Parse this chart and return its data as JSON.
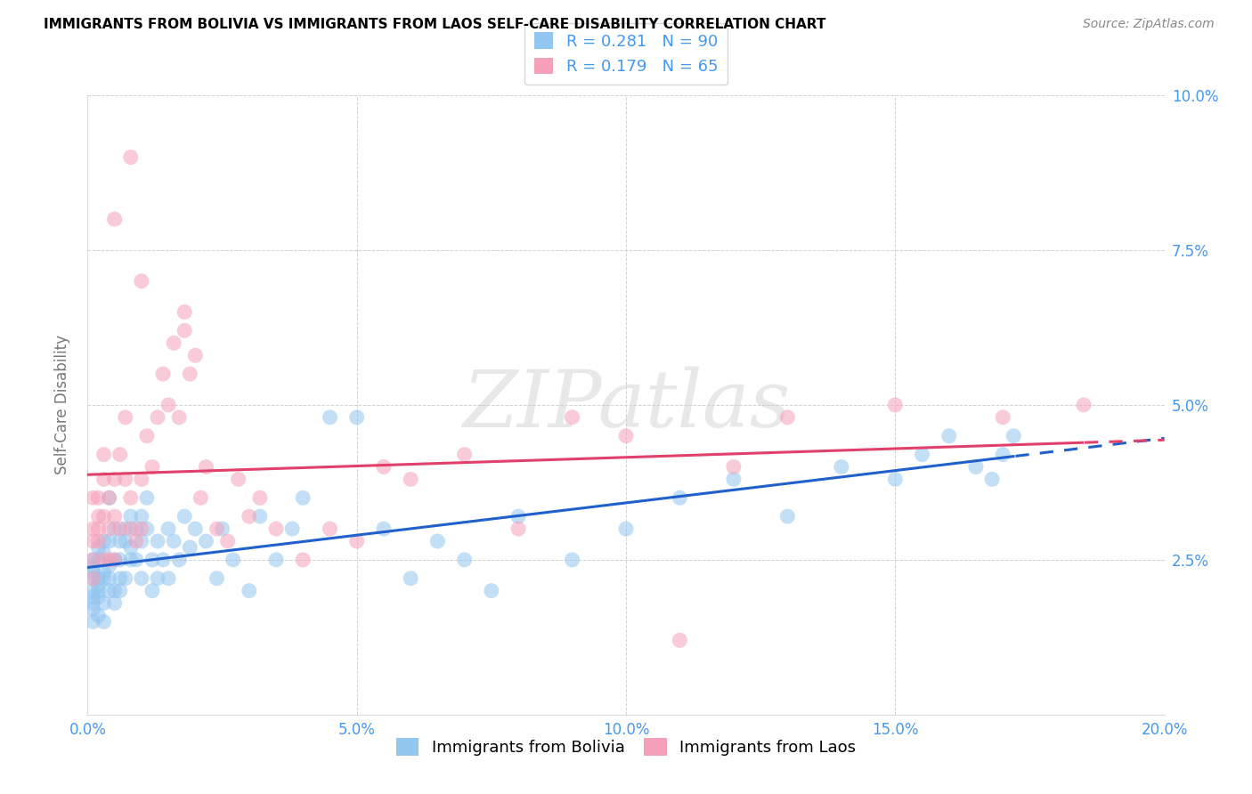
{
  "title": "IMMIGRANTS FROM BOLIVIA VS IMMIGRANTS FROM LAOS SELF-CARE DISABILITY CORRELATION CHART",
  "source": "Source: ZipAtlas.com",
  "ylabel": "Self-Care Disability",
  "xlim": [
    0.0,
    0.2
  ],
  "ylim": [
    0.0,
    0.1
  ],
  "xticks": [
    0.0,
    0.05,
    0.1,
    0.15,
    0.2
  ],
  "yticks": [
    0.0,
    0.025,
    0.05,
    0.075,
    0.1
  ],
  "xticklabels": [
    "0.0%",
    "5.0%",
    "10.0%",
    "15.0%",
    "20.0%"
  ],
  "yticklabels": [
    "",
    "2.5%",
    "5.0%",
    "7.5%",
    "10.0%"
  ],
  "bolivia_color": "#92C5F0",
  "laos_color": "#F5A0B8",
  "bolivia_line_color": "#2060CC",
  "laos_line_color": "#E0406A",
  "R_bolivia": 0.281,
  "N_bolivia": 90,
  "R_laos": 0.179,
  "N_laos": 65,
  "legend_labels": [
    "Immigrants from Bolivia",
    "Immigrants from Laos"
  ],
  "watermark": "ZIPatlas",
  "tick_color": "#4499EE",
  "axis_label_color": "#777777",
  "bolivia_x": [
    0.001,
    0.001,
    0.001,
    0.001,
    0.001,
    0.001,
    0.001,
    0.001,
    0.001,
    0.002,
    0.002,
    0.002,
    0.002,
    0.002,
    0.002,
    0.002,
    0.003,
    0.003,
    0.003,
    0.003,
    0.003,
    0.003,
    0.004,
    0.004,
    0.004,
    0.004,
    0.004,
    0.005,
    0.005,
    0.005,
    0.005,
    0.006,
    0.006,
    0.006,
    0.006,
    0.007,
    0.007,
    0.007,
    0.008,
    0.008,
    0.008,
    0.009,
    0.009,
    0.01,
    0.01,
    0.01,
    0.011,
    0.011,
    0.012,
    0.012,
    0.013,
    0.013,
    0.014,
    0.015,
    0.015,
    0.016,
    0.017,
    0.018,
    0.019,
    0.02,
    0.022,
    0.024,
    0.025,
    0.027,
    0.03,
    0.032,
    0.035,
    0.038,
    0.04,
    0.045,
    0.05,
    0.055,
    0.06,
    0.065,
    0.07,
    0.075,
    0.08,
    0.09,
    0.1,
    0.11,
    0.12,
    0.13,
    0.14,
    0.15,
    0.155,
    0.16,
    0.165,
    0.168,
    0.17,
    0.172
  ],
  "bolivia_y": [
    0.02,
    0.022,
    0.018,
    0.025,
    0.015,
    0.019,
    0.023,
    0.017,
    0.024,
    0.021,
    0.016,
    0.022,
    0.027,
    0.019,
    0.025,
    0.02,
    0.023,
    0.018,
    0.028,
    0.022,
    0.026,
    0.015,
    0.024,
    0.02,
    0.028,
    0.022,
    0.035,
    0.03,
    0.018,
    0.025,
    0.02,
    0.022,
    0.028,
    0.025,
    0.02,
    0.03,
    0.022,
    0.028,
    0.025,
    0.032,
    0.027,
    0.03,
    0.025,
    0.028,
    0.022,
    0.032,
    0.03,
    0.035,
    0.025,
    0.02,
    0.022,
    0.028,
    0.025,
    0.03,
    0.022,
    0.028,
    0.025,
    0.032,
    0.027,
    0.03,
    0.028,
    0.022,
    0.03,
    0.025,
    0.02,
    0.032,
    0.025,
    0.03,
    0.035,
    0.048,
    0.048,
    0.03,
    0.022,
    0.028,
    0.025,
    0.02,
    0.032,
    0.025,
    0.03,
    0.035,
    0.038,
    0.032,
    0.04,
    0.038,
    0.042,
    0.045,
    0.04,
    0.038,
    0.042,
    0.045
  ],
  "laos_x": [
    0.001,
    0.001,
    0.001,
    0.001,
    0.001,
    0.002,
    0.002,
    0.002,
    0.002,
    0.003,
    0.003,
    0.003,
    0.003,
    0.004,
    0.004,
    0.004,
    0.005,
    0.005,
    0.005,
    0.006,
    0.006,
    0.007,
    0.007,
    0.008,
    0.008,
    0.009,
    0.01,
    0.01,
    0.011,
    0.012,
    0.013,
    0.014,
    0.015,
    0.016,
    0.017,
    0.018,
    0.019,
    0.02,
    0.021,
    0.022,
    0.024,
    0.026,
    0.028,
    0.03,
    0.032,
    0.035,
    0.04,
    0.045,
    0.05,
    0.055,
    0.06,
    0.07,
    0.08,
    0.09,
    0.1,
    0.11,
    0.12,
    0.13,
    0.15,
    0.17,
    0.005,
    0.008,
    0.01,
    0.018,
    0.185
  ],
  "laos_y": [
    0.025,
    0.03,
    0.028,
    0.035,
    0.022,
    0.032,
    0.028,
    0.035,
    0.03,
    0.025,
    0.038,
    0.032,
    0.042,
    0.035,
    0.03,
    0.025,
    0.038,
    0.032,
    0.025,
    0.042,
    0.03,
    0.048,
    0.038,
    0.035,
    0.03,
    0.028,
    0.038,
    0.03,
    0.045,
    0.04,
    0.048,
    0.055,
    0.05,
    0.06,
    0.048,
    0.062,
    0.055,
    0.058,
    0.035,
    0.04,
    0.03,
    0.028,
    0.038,
    0.032,
    0.035,
    0.03,
    0.025,
    0.03,
    0.028,
    0.04,
    0.038,
    0.042,
    0.03,
    0.048,
    0.045,
    0.012,
    0.04,
    0.048,
    0.05,
    0.048,
    0.08,
    0.09,
    0.07,
    0.065,
    0.05
  ]
}
